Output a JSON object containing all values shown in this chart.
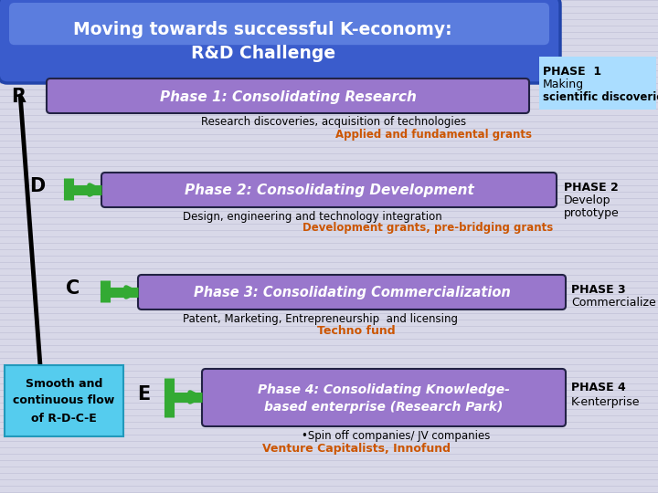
{
  "title_line1": "Moving towards successful K-economy:",
  "title_line2": "R&D Challenge",
  "title_bg_dark": "#2244bb",
  "title_bg_mid": "#4466cc",
  "title_bg_light": "#6688ee",
  "title_text_color": "white",
  "phase_box_color": "#9977cc",
  "phase_box_edge": "#222244",
  "phase_text_color": "white",
  "background_color": "#d8d8e8",
  "stripe_color": "#c8c8dc",
  "phase1_label": "R",
  "phase2_label": "D",
  "phase3_label": "C",
  "phase4_label": "E",
  "phase1_text": "Phase 1: Consolidating Research",
  "phase2_text": "Phase 2: Consolidating Development",
  "phase3_text": "Phase 3: Consolidating Commercialization",
  "phase4_text": "Phase 4: Consolidating Knowledge-\nbased enterprise (Research Park)",
  "phase1_right_1": "PHASE  1",
  "phase1_right_2": "Making",
  "phase1_right_3": "scientific discoveries",
  "phase2_right_1": "PHASE 2",
  "phase2_right_2": "Develop",
  "phase2_right_3": "prototype",
  "phase3_right_1": "PHASE 3",
  "phase3_right_2": "Commercialize",
  "phase4_right_1": "PHASE 4",
  "phase4_right_2": "K-enterprise",
  "phase1_right_box_color": "#aaddff",
  "phase2_right_box_color": "#ffffff",
  "phase3_right_box_color": "#ffffff",
  "phase4_right_box_color": "#ffffff",
  "sub1": "Research discoveries, acquisition of technologies",
  "sub2": "Design, engineering and technology integration",
  "sub3": "Patent, Marketing, Entrepreneurship  and licensing",
  "sub4": "•Spin off companies/ JV companies",
  "grant1": "Applied and fundamental grants",
  "grant2": "Development grants, pre-bridging grants",
  "grant3": "Techno fund",
  "grant4": "Venture Capitalists, Innofund",
  "grant_color": "#cc5500",
  "smooth_box_color": "#55ccee",
  "smooth_text": "Smooth and\ncontinuous flow\nof R-D-C-E",
  "green_arrow_color": "#33aa33",
  "big_arrow_color": "black"
}
